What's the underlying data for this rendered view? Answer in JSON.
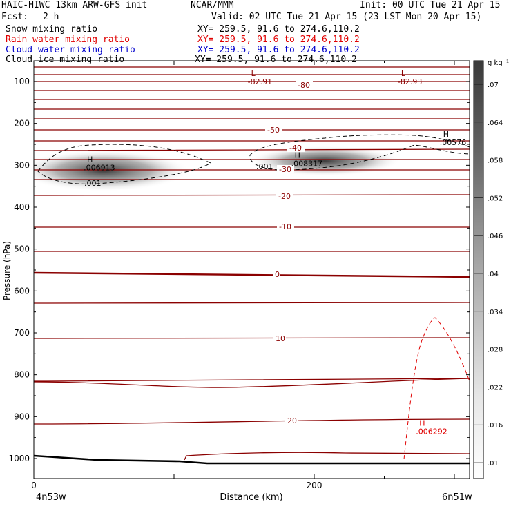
{
  "header": {
    "title_left": "HAIC-HIWC 13km ARW-GFS init",
    "title_center": "NCAR/MMM",
    "init": "Init: 00 UTC Tue 21 Apr 15",
    "fcst_label": "Fcst:",
    "fcst_value": "2 h",
    "valid": "Valid: 02 UTC Tue 21 Apr 15 (23 LST Mon 20 Apr 15)",
    "fields": [
      {
        "name": "Snow mixing ratio",
        "xy": "XY= 259.5, 91.6 to 274.6,110.2",
        "color": "#000000"
      },
      {
        "name": "Rain water mixing ratio",
        "xy": "XY= 259.5, 91.6 to 274.6,110.2",
        "color": "#e00000"
      },
      {
        "name": "Cloud water mixing ratio",
        "xy": "XY= 259.5, 91.6 to 274.6,110.2",
        "color": "#0000cc"
      },
      {
        "name": "Cloud ice mixing ratio",
        "xy": "XY= 259.5, 91.6 to 274.6,110.2",
        "color": "#000000"
      }
    ]
  },
  "chart_data": {
    "type": "contour-cross-section",
    "xlabel": "Distance (km)",
    "ylabel": "Pressure (hPa)",
    "x_ticks": [
      {
        "value": 0,
        "label": "0"
      },
      {
        "value": 200,
        "label": "200"
      }
    ],
    "x_range_km": [
      0,
      310
    ],
    "x_endpoints": {
      "left": "4n53w",
      "right": "6n51w"
    },
    "y_ticks": [
      100,
      200,
      300,
      400,
      500,
      600,
      700,
      800,
      900,
      1000
    ],
    "y_range_hPa": [
      50,
      1050
    ],
    "temperature_contour_labels": [
      "-80",
      "-50",
      "-40",
      "-30",
      "-20",
      "-10",
      "0",
      "10",
      "20"
    ],
    "extrema_labels": [
      {
        "kind": "L",
        "value": "-82.91",
        "x_km": 155,
        "p_hPa": 100,
        "color": "#8b0000"
      },
      {
        "kind": "L",
        "value": "-82.93",
        "x_km": 262,
        "p_hPa": 100,
        "color": "#8b0000"
      },
      {
        "kind": "H",
        "value": ".006913",
        "x_km": 38,
        "p_hPa": 305,
        "color": "#000000"
      },
      {
        "kind": "H",
        "value": ".008317",
        "x_km": 186,
        "p_hPa": 295,
        "color": "#000000"
      },
      {
        "kind": "H",
        "value": ".00576",
        "x_km": 292,
        "p_hPa": 245,
        "color": "#000000"
      },
      {
        "kind": "H",
        "value": ".006292",
        "x_km": 275,
        "p_hPa": 935,
        "color": "#e00000"
      }
    ],
    "cloud_ice_contour_label": ".001",
    "colorbar": {
      "unit": "g kg⁻¹",
      "labels": [
        ".01",
        ".016",
        ".022",
        ".028",
        ".034",
        ".04",
        ".046",
        ".052",
        ".058",
        ".064",
        ".07"
      ]
    }
  }
}
